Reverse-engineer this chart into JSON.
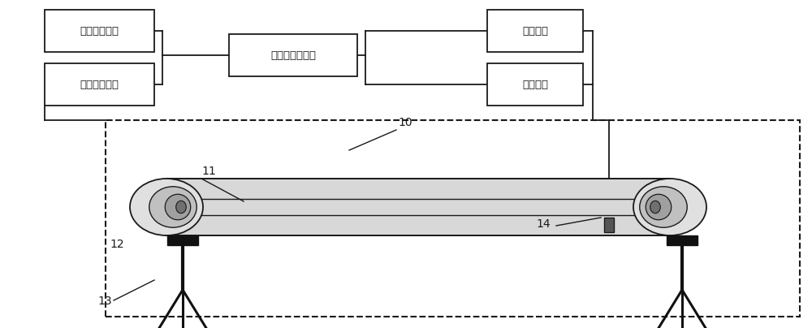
{
  "bg_color": "#ffffff",
  "box_color": "#ffffff",
  "box_edge": "#222222",
  "labels": {
    "heating": "加热控制系统",
    "data": "数据采集系统",
    "upper": "上位机控制系统",
    "pump": "抽气系统",
    "leak": "检漏系统"
  },
  "numbers": {
    "n10": "10",
    "n11": "11",
    "n12": "12",
    "n13": "13",
    "n14": "14"
  }
}
